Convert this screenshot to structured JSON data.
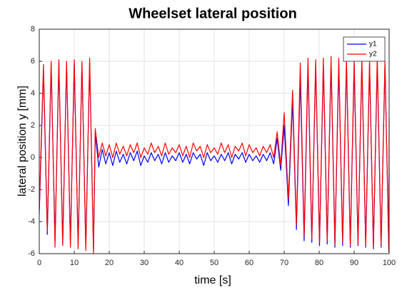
{
  "chart_data": {
    "type": "line",
    "title": "Wheelset lateral position",
    "xlabel": "time [s]",
    "ylabel": "lateral position y [mm]",
    "x": [
      0,
      1.2,
      2.3,
      3.4,
      4.5,
      5.6,
      6.7,
      7.8,
      8.9,
      10.0,
      11.1,
      12.2,
      13.3,
      14.4,
      15.5,
      16,
      17,
      18,
      19,
      20,
      21,
      22,
      23,
      24,
      25,
      26,
      27,
      28,
      29,
      30,
      31,
      32,
      33,
      34,
      35,
      36,
      37,
      38,
      39,
      40,
      41,
      42,
      43,
      44,
      45,
      46,
      47,
      48,
      49,
      50,
      51,
      52,
      53,
      54,
      55,
      56,
      57,
      58,
      59,
      60,
      61,
      62,
      63,
      64,
      65,
      66,
      67,
      68,
      69,
      70,
      71.2,
      72.4,
      73.5,
      74.6,
      75.7,
      76.8,
      77.9,
      79.0,
      80.1,
      81.2,
      82.3,
      83.4,
      84.5,
      85.6,
      86.7,
      87.8,
      88.9,
      90.0,
      91.1,
      92.2,
      93.3,
      94.4,
      95.5,
      96.6,
      97.7,
      98.8,
      99.9,
      100
    ],
    "series": [
      {
        "name": "y1",
        "color": "#0000ff",
        "values": [
          -3.5,
          5.5,
          -4.8,
          5.8,
          -5.2,
          5.9,
          -5.3,
          5.8,
          -5.4,
          5.9,
          -5.5,
          5.8,
          -5.6,
          5.9,
          -5.8,
          1.5,
          -0.6,
          0.5,
          -0.4,
          0.3,
          -0.5,
          0.4,
          -0.3,
          0.2,
          -0.4,
          0.3,
          -0.2,
          0.4,
          -0.5,
          0.1,
          -0.3,
          0.3,
          -0.2,
          0.2,
          -0.4,
          0.3,
          -0.3,
          0.1,
          -0.2,
          0.3,
          -0.3,
          0.2,
          -0.4,
          0.3,
          -0.1,
          0.2,
          -0.5,
          0.3,
          -0.2,
          0.1,
          -0.3,
          0.2,
          -0.2,
          0.3,
          -0.4,
          0.2,
          -0.1,
          0.3,
          -0.3,
          0.2,
          -0.2,
          0.1,
          -0.3,
          0.2,
          -0.2,
          0.3,
          -0.4,
          1.2,
          -0.8,
          2.0,
          -3.0,
          3.5,
          -4.5,
          5.0,
          -5.2,
          5.7,
          -5.3,
          5.8,
          -5.5,
          5.8,
          -5.4,
          5.9,
          -5.6,
          5.8,
          -5.5,
          5.9,
          -5.6,
          5.8,
          -5.5,
          5.9,
          -5.6,
          5.8,
          -5.7,
          5.9,
          -5.6,
          5.8,
          -5.6,
          -1.0
        ]
      },
      {
        "name": "y2",
        "color": "#ff0000",
        "values": [
          -3.2,
          5.8,
          -4.6,
          6.0,
          -5.6,
          6.1,
          -5.5,
          6.0,
          -5.6,
          6.1,
          -5.7,
          6.0,
          -5.8,
          6.2,
          -6.0,
          1.8,
          0.0,
          0.9,
          0.1,
          0.8,
          0.0,
          0.9,
          0.2,
          0.7,
          0.1,
          0.8,
          0.3,
          0.9,
          0.0,
          0.6,
          0.2,
          0.9,
          0.3,
          0.7,
          0.1,
          0.9,
          0.2,
          0.6,
          0.3,
          0.8,
          0.1,
          0.7,
          0.0,
          0.9,
          0.4,
          0.7,
          0.0,
          0.8,
          0.3,
          0.6,
          0.2,
          0.9,
          0.3,
          0.8,
          0.0,
          0.7,
          0.4,
          0.9,
          0.1,
          0.8,
          0.3,
          0.6,
          0.1,
          0.7,
          0.3,
          0.8,
          0.0,
          1.6,
          -0.5,
          2.8,
          -2.6,
          4.2,
          -4.2,
          5.9,
          -4.9,
          6.2,
          -5.1,
          6.1,
          -5.3,
          6.2,
          -5.2,
          6.3,
          -5.4,
          6.2,
          -5.3,
          6.2,
          -5.5,
          6.1,
          -5.4,
          6.2,
          -5.5,
          6.1,
          -5.6,
          6.3,
          -5.5,
          6.0,
          -5.9,
          2.5
        ]
      }
    ],
    "xlim": [
      0,
      100
    ],
    "xticks": [
      0,
      10,
      20,
      30,
      40,
      50,
      60,
      70,
      80,
      90,
      100
    ],
    "ylim": [
      -6,
      8
    ],
    "yticks": [
      -6,
      -4,
      -2,
      0,
      2,
      4,
      6,
      8
    ],
    "grid": true,
    "legend": "northeast"
  }
}
